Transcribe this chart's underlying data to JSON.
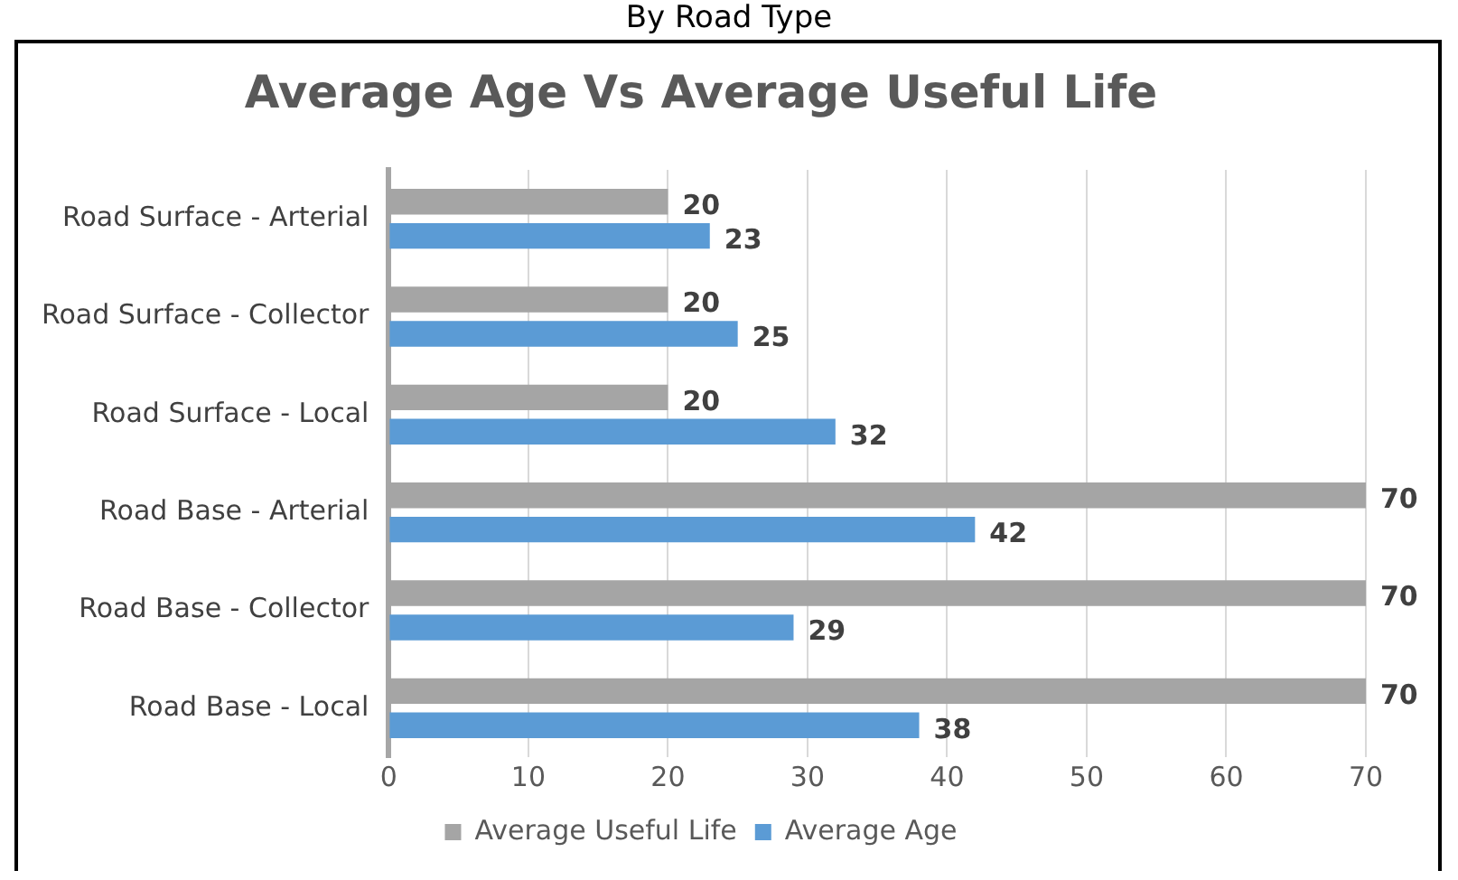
{
  "chart_data": {
    "type": "bar",
    "orientation": "horizontal",
    "title": "Average Age Vs Average Useful Life",
    "subtitle": "By Road Type",
    "categories": [
      "Road Surface - Arterial",
      "Road Surface - Collector",
      "Road Surface - Local",
      "Road Base - Arterial",
      "Road Base - Collector",
      "Road Base - Local"
    ],
    "series": [
      {
        "name": "Average Useful Life",
        "color": "#a5a5a5",
        "values": [
          20,
          20,
          20,
          70,
          70,
          70
        ]
      },
      {
        "name": "Average Age",
        "color": "#5b9bd5",
        "values": [
          23,
          25,
          32,
          42,
          29,
          38
        ]
      }
    ],
    "xlim": [
      0,
      70
    ],
    "xticks": [
      0,
      10,
      20,
      30,
      40,
      50,
      60,
      70
    ],
    "grid": "x",
    "legend": "bottom",
    "data_labels": true
  }
}
